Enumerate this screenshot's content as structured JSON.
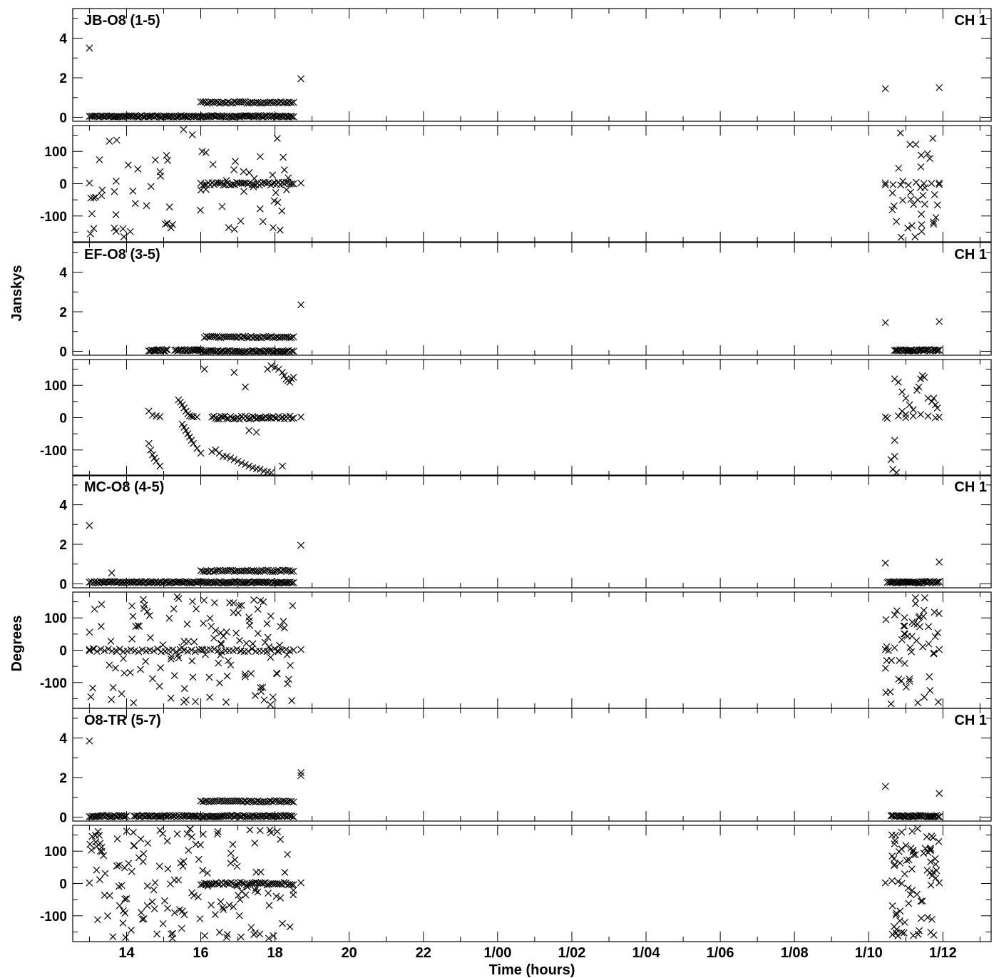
{
  "chart_data": {
    "type": "scatter",
    "xlabel": "Time (hours)",
    "ylabel_amp": "Janskys",
    "ylabel_phase": "Degrees",
    "xlim": [
      12.55,
      37.3
    ],
    "amp_ylim": [
      -0.2,
      5.5
    ],
    "phase_ylim": [
      -180,
      180
    ],
    "amp_ticks": [
      0,
      2,
      4
    ],
    "phase_ticks": [
      -100,
      0,
      100
    ],
    "x_major_ticks": [
      {
        "x": 14,
        "label": "14"
      },
      {
        "x": 16,
        "label": "16"
      },
      {
        "x": 18,
        "label": "18"
      },
      {
        "x": 20,
        "label": "20"
      },
      {
        "x": 22,
        "label": "22"
      },
      {
        "x": 24,
        "label": "1/00"
      },
      {
        "x": 26,
        "label": "1/02"
      },
      {
        "x": 28,
        "label": "1/04"
      },
      {
        "x": 30,
        "label": "1/06"
      },
      {
        "x": 32,
        "label": "1/08"
      },
      {
        "x": 34,
        "label": "1/10"
      },
      {
        "x": 36,
        "label": "1/12"
      }
    ],
    "panels": [
      {
        "baseline": "JB-O8 (1-5)",
        "channel": "CH 1",
        "amp_segments": [
          {
            "x0": 13.0,
            "x1": 18.5,
            "y": 0.05,
            "n": 130
          },
          {
            "x0": 16.0,
            "x1": 18.5,
            "y": 0.75,
            "n": 45
          }
        ],
        "amp_points": [
          [
            13.0,
            3.5
          ],
          [
            18.7,
            1.95
          ],
          [
            34.45,
            1.45
          ],
          [
            35.9,
            1.5
          ]
        ],
        "phase_segments": [
          {
            "x0": 16.0,
            "x1": 18.5,
            "y": 0,
            "n": 50
          },
          {
            "x0": 34.45,
            "x1": 35.9,
            "y": 0,
            "n": 8
          }
        ],
        "phase_points": [
          [
            13.0,
            2
          ],
          [
            18.7,
            2
          ],
          [
            34.45,
            2
          ],
          [
            35.9,
            2
          ]
        ],
        "scatter_ranges": [
          [
            13.0,
            18.5,
            70
          ],
          [
            34.6,
            35.9,
            35
          ]
        ],
        "seed": 11
      },
      {
        "baseline": "EF-O8 (3-5)",
        "channel": "CH 1",
        "amp_segments": [
          {
            "x0": 14.6,
            "x1": 15.1,
            "y": 0.05,
            "n": 15
          },
          {
            "x0": 15.3,
            "x1": 16.0,
            "y": 0.05,
            "n": 20
          },
          {
            "x0": 16.0,
            "x1": 18.5,
            "y": 0.0,
            "n": 55
          },
          {
            "x0": 16.1,
            "x1": 18.5,
            "y": 0.72,
            "n": 45
          },
          {
            "x0": 34.7,
            "x1": 35.9,
            "y": 0.05,
            "n": 35
          }
        ],
        "amp_points": [
          [
            18.7,
            2.35
          ],
          [
            34.45,
            1.45
          ],
          [
            35.9,
            1.5
          ]
        ],
        "phase_segments": [
          {
            "x0": 16.3,
            "x1": 18.5,
            "y": 0,
            "n": 45
          }
        ],
        "phase_points": [
          [
            14.6,
            20
          ],
          [
            14.7,
            8
          ],
          [
            14.8,
            5
          ],
          [
            14.9,
            3
          ],
          [
            14.6,
            -80
          ],
          [
            14.65,
            -100
          ],
          [
            14.7,
            -115
          ],
          [
            14.75,
            -125
          ],
          [
            14.8,
            -135
          ],
          [
            14.9,
            -150
          ],
          [
            15.4,
            55
          ],
          [
            15.45,
            48
          ],
          [
            15.5,
            40
          ],
          [
            15.55,
            30
          ],
          [
            15.6,
            20
          ],
          [
            15.65,
            12
          ],
          [
            15.7,
            6
          ],
          [
            15.75,
            4
          ],
          [
            15.8,
            3
          ],
          [
            15.9,
            2
          ],
          [
            15.5,
            -20
          ],
          [
            15.55,
            -30
          ],
          [
            15.6,
            -40
          ],
          [
            15.65,
            -50
          ],
          [
            15.7,
            -60
          ],
          [
            15.75,
            -70
          ],
          [
            15.8,
            -80
          ],
          [
            15.9,
            -95
          ],
          [
            16.0,
            -110
          ],
          [
            16.3,
            -105
          ],
          [
            16.4,
            -100
          ],
          [
            16.5,
            -110
          ],
          [
            16.6,
            -120
          ],
          [
            16.7,
            -120
          ],
          [
            16.8,
            -125
          ],
          [
            16.9,
            -130
          ],
          [
            17.0,
            -135
          ],
          [
            17.1,
            -140
          ],
          [
            17.2,
            -145
          ],
          [
            17.3,
            -150
          ],
          [
            17.4,
            -155
          ],
          [
            17.5,
            -158
          ],
          [
            17.6,
            -160
          ],
          [
            17.7,
            -165
          ],
          [
            17.8,
            -168
          ],
          [
            17.9,
            -170
          ],
          [
            16.1,
            150
          ],
          [
            16.9,
            140
          ],
          [
            17.2,
            95
          ],
          [
            17.8,
            150
          ],
          [
            17.9,
            160
          ],
          [
            18.0,
            155
          ],
          [
            18.1,
            150
          ],
          [
            18.2,
            140
          ],
          [
            18.25,
            130
          ],
          [
            18.3,
            120
          ],
          [
            18.35,
            115
          ],
          [
            18.4,
            110
          ],
          [
            18.45,
            120
          ],
          [
            18.5,
            125
          ],
          [
            17.3,
            -40
          ],
          [
            17.5,
            -45
          ],
          [
            18.2,
            -150
          ],
          [
            18.7,
            2
          ],
          [
            34.45,
            2
          ],
          [
            34.5,
            -2
          ],
          [
            34.7,
            -70
          ],
          [
            34.6,
            -130
          ],
          [
            34.7,
            -120
          ],
          [
            34.65,
            -160
          ],
          [
            34.75,
            -170
          ],
          [
            34.7,
            120
          ],
          [
            34.8,
            110
          ],
          [
            34.9,
            80
          ],
          [
            35.0,
            60
          ],
          [
            35.1,
            40
          ],
          [
            34.9,
            20
          ],
          [
            35.0,
            10
          ],
          [
            35.2,
            25
          ],
          [
            35.3,
            85
          ],
          [
            35.35,
            95
          ],
          [
            35.4,
            120
          ],
          [
            35.45,
            130
          ],
          [
            35.5,
            125
          ],
          [
            35.6,
            60
          ],
          [
            35.7,
            50
          ],
          [
            35.8,
            40
          ],
          [
            34.8,
            5
          ],
          [
            35.0,
            0
          ],
          [
            35.2,
            5
          ],
          [
            35.4,
            10
          ],
          [
            35.6,
            5
          ],
          [
            35.8,
            0
          ],
          [
            35.9,
            2
          ],
          [
            35.85,
            30
          ],
          [
            35.75,
            60
          ]
        ],
        "scatter_ranges": [],
        "seed": 23
      },
      {
        "baseline": "MC-O8 (4-5)",
        "channel": "CH 1",
        "amp_segments": [
          {
            "x0": 13.0,
            "x1": 18.5,
            "y": 0.08,
            "n": 130
          },
          {
            "x0": 16.0,
            "x1": 18.5,
            "y": 0.65,
            "n": 45
          },
          {
            "x0": 34.5,
            "x1": 35.9,
            "y": 0.08,
            "n": 40
          }
        ],
        "amp_points": [
          [
            13.0,
            2.95
          ],
          [
            18.7,
            1.95
          ],
          [
            34.45,
            1.05
          ],
          [
            35.9,
            1.1
          ],
          [
            13.6,
            0.55
          ]
        ],
        "phase_segments": [
          {
            "x0": 13.0,
            "x1": 18.5,
            "y": 0,
            "n": 55
          }
        ],
        "phase_points": [
          [
            13.0,
            2
          ],
          [
            18.7,
            2
          ],
          [
            34.45,
            2
          ],
          [
            35.9,
            2
          ]
        ],
        "scatter_ranges": [
          [
            13.0,
            18.5,
            130
          ],
          [
            34.45,
            35.9,
            55
          ]
        ],
        "seed": 37
      },
      {
        "baseline": "O8-TR (5-7)",
        "channel": "CH 1",
        "amp_segments": [
          {
            "x0": 13.0,
            "x1": 14.0,
            "y": 0.05,
            "n": 25
          },
          {
            "x0": 14.2,
            "x1": 18.5,
            "y": 0.05,
            "n": 100
          },
          {
            "x0": 16.0,
            "x1": 18.5,
            "y": 0.8,
            "n": 45
          },
          {
            "x0": 34.6,
            "x1": 35.9,
            "y": 0.05,
            "n": 40
          }
        ],
        "amp_points": [
          [
            13.0,
            3.85
          ],
          [
            18.7,
            2.1
          ],
          [
            18.7,
            2.25
          ],
          [
            34.45,
            1.55
          ],
          [
            35.9,
            1.2
          ]
        ],
        "phase_segments": [
          {
            "x0": 16.0,
            "x1": 18.5,
            "y": 0,
            "n": 50
          }
        ],
        "phase_points": [
          [
            13.0,
            2
          ],
          [
            18.7,
            2
          ],
          [
            34.45,
            2
          ],
          [
            35.9,
            2
          ]
        ],
        "scatter_ranges": [
          [
            13.0,
            18.5,
            150
          ],
          [
            34.6,
            35.9,
            75
          ]
        ],
        "seed": 51
      }
    ]
  }
}
